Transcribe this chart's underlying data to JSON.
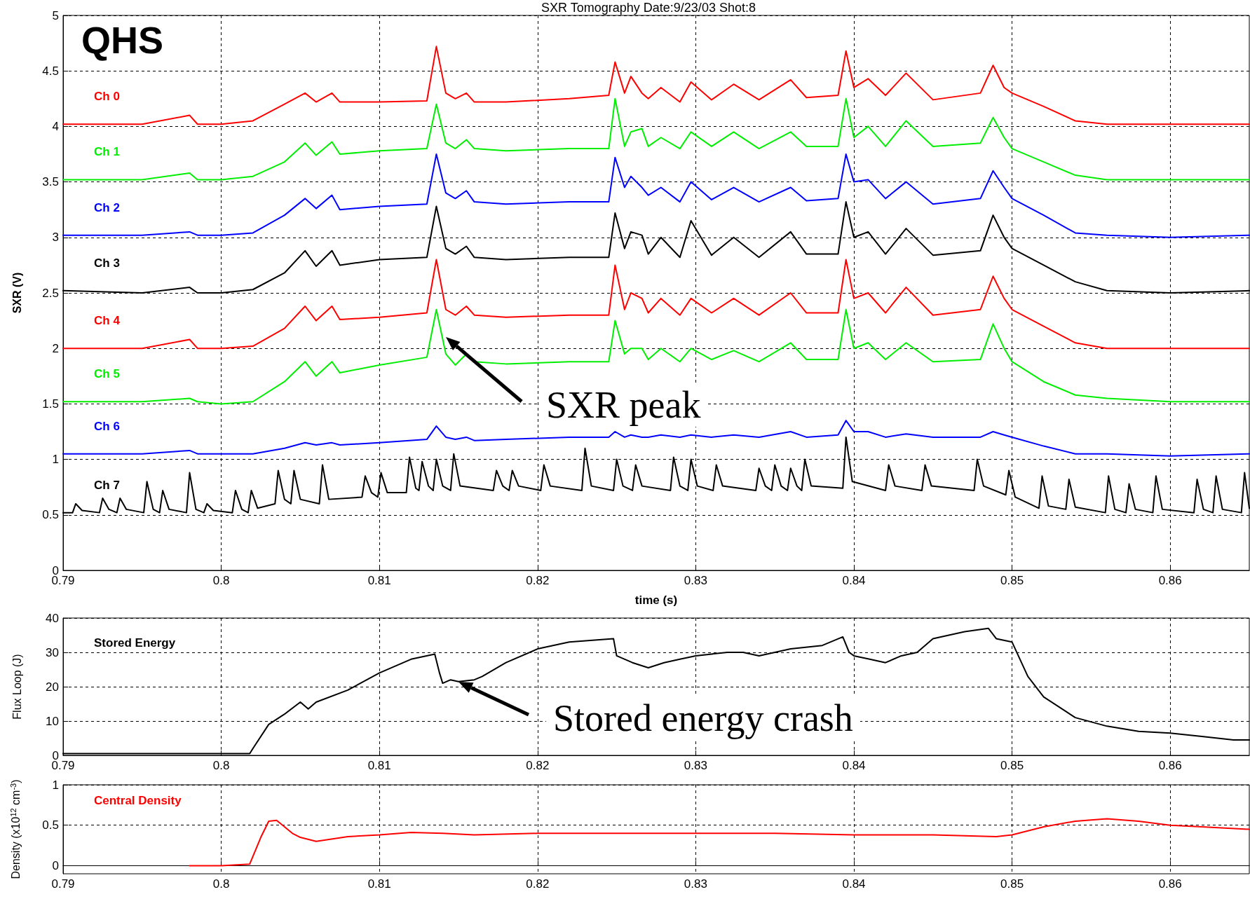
{
  "chart_data": [
    {
      "type": "line",
      "title": "SXR Tomography Date:9/23/03 Shot:8",
      "xlabel": "time (s)",
      "ylabel": "SXR (V)",
      "annotations": [
        "QHS",
        {
          "text": "SXR peak",
          "x": 0.8142,
          "y": 2.1
        }
      ],
      "xlim": [
        0.79,
        0.865
      ],
      "xticks": [
        0.79,
        0.8,
        0.81,
        0.82,
        0.83,
        0.84,
        0.85,
        0.86
      ],
      "ylim": [
        0,
        5
      ],
      "yticks": [
        0,
        0.5,
        1,
        1.5,
        2,
        2.5,
        3,
        3.5,
        4,
        4.5,
        5
      ],
      "grid": true,
      "marker": "none",
      "line_style": "solid",
      "x": [
        0.79,
        0.795,
        0.798,
        0.7985,
        0.8,
        0.802,
        0.804,
        0.8053,
        0.806,
        0.807,
        0.8075,
        0.81,
        0.813,
        0.8136,
        0.8142,
        0.8148,
        0.8155,
        0.816,
        0.818,
        0.822,
        0.8245,
        0.8249,
        0.8255,
        0.8259,
        0.8266,
        0.827,
        0.8278,
        0.829,
        0.8297,
        0.831,
        0.8324,
        0.834,
        0.836,
        0.837,
        0.839,
        0.8395,
        0.84,
        0.8409,
        0.842,
        0.8433,
        0.845,
        0.848,
        0.8488,
        0.8495,
        0.85,
        0.852,
        0.854,
        0.856,
        0.86,
        0.865
      ],
      "series": [
        {
          "name": "Ch 0",
          "color": "#ff0000",
          "values": [
            4.02,
            4.02,
            4.1,
            4.02,
            4.02,
            4.05,
            4.2,
            4.3,
            4.22,
            4.3,
            4.22,
            4.22,
            4.23,
            4.72,
            4.3,
            4.25,
            4.3,
            4.22,
            4.22,
            4.25,
            4.28,
            4.58,
            4.3,
            4.45,
            4.3,
            4.25,
            4.35,
            4.22,
            4.4,
            4.24,
            4.38,
            4.24,
            4.42,
            4.26,
            4.28,
            4.68,
            4.35,
            4.43,
            4.28,
            4.48,
            4.24,
            4.3,
            4.55,
            4.35,
            4.3,
            4.18,
            4.05,
            4.02,
            4.02,
            4.02
          ]
        },
        {
          "name": "Ch 1",
          "color": "#00ee00",
          "values": [
            3.52,
            3.52,
            3.58,
            3.52,
            3.52,
            3.55,
            3.68,
            3.85,
            3.74,
            3.86,
            3.75,
            3.78,
            3.8,
            4.2,
            3.85,
            3.8,
            3.88,
            3.8,
            3.78,
            3.8,
            3.8,
            4.25,
            3.82,
            3.95,
            3.98,
            3.82,
            3.9,
            3.8,
            3.95,
            3.82,
            3.95,
            3.8,
            3.95,
            3.82,
            3.82,
            4.25,
            3.9,
            4.0,
            3.82,
            4.05,
            3.82,
            3.85,
            4.08,
            3.9,
            3.8,
            3.68,
            3.56,
            3.52,
            3.52,
            3.52
          ]
        },
        {
          "name": "Ch 2",
          "color": "#0000ff",
          "values": [
            3.02,
            3.02,
            3.05,
            3.02,
            3.02,
            3.04,
            3.2,
            3.35,
            3.26,
            3.38,
            3.25,
            3.28,
            3.3,
            3.75,
            3.4,
            3.35,
            3.42,
            3.32,
            3.3,
            3.32,
            3.32,
            3.72,
            3.45,
            3.55,
            3.45,
            3.38,
            3.45,
            3.32,
            3.5,
            3.34,
            3.45,
            3.32,
            3.45,
            3.33,
            3.35,
            3.75,
            3.5,
            3.52,
            3.35,
            3.5,
            3.3,
            3.35,
            3.6,
            3.45,
            3.35,
            3.2,
            3.04,
            3.02,
            3.0,
            3.02
          ]
        },
        {
          "name": "Ch 3",
          "color": "#000000",
          "values": [
            2.52,
            2.5,
            2.55,
            2.5,
            2.5,
            2.53,
            2.68,
            2.88,
            2.74,
            2.88,
            2.75,
            2.8,
            2.82,
            3.28,
            2.9,
            2.85,
            2.92,
            2.82,
            2.8,
            2.82,
            2.82,
            3.22,
            2.9,
            3.05,
            3.02,
            2.85,
            3.0,
            2.82,
            3.15,
            2.84,
            3.0,
            2.82,
            3.05,
            2.85,
            2.85,
            3.32,
            3.0,
            3.05,
            2.85,
            3.08,
            2.84,
            2.88,
            3.2,
            3.0,
            2.9,
            2.75,
            2.6,
            2.52,
            2.5,
            2.52
          ]
        },
        {
          "name": "Ch 4",
          "color": "#ff0000",
          "values": [
            2.0,
            2.0,
            2.08,
            2.0,
            2.0,
            2.02,
            2.18,
            2.38,
            2.25,
            2.38,
            2.26,
            2.28,
            2.32,
            2.8,
            2.35,
            2.3,
            2.38,
            2.3,
            2.28,
            2.3,
            2.3,
            2.75,
            2.35,
            2.5,
            2.45,
            2.32,
            2.45,
            2.3,
            2.45,
            2.32,
            2.45,
            2.3,
            2.5,
            2.32,
            2.32,
            2.8,
            2.45,
            2.5,
            2.32,
            2.55,
            2.3,
            2.35,
            2.65,
            2.45,
            2.35,
            2.2,
            2.05,
            2.0,
            2.0,
            2.0
          ]
        },
        {
          "name": "Ch 5",
          "color": "#00ee00",
          "values": [
            1.52,
            1.52,
            1.55,
            1.52,
            1.5,
            1.52,
            1.7,
            1.88,
            1.75,
            1.88,
            1.78,
            1.85,
            1.92,
            2.35,
            1.95,
            1.85,
            1.95,
            1.88,
            1.86,
            1.88,
            1.88,
            2.25,
            1.95,
            2.0,
            2.0,
            1.9,
            2.0,
            1.88,
            2.0,
            1.9,
            1.98,
            1.88,
            2.05,
            1.9,
            1.9,
            2.35,
            2.0,
            2.05,
            1.9,
            2.05,
            1.88,
            1.9,
            2.22,
            2.0,
            1.88,
            1.7,
            1.58,
            1.55,
            1.52,
            1.52
          ]
        },
        {
          "name": "Ch 6",
          "color": "#0000ff",
          "values": [
            1.05,
            1.05,
            1.08,
            1.05,
            1.05,
            1.05,
            1.1,
            1.15,
            1.13,
            1.15,
            1.13,
            1.15,
            1.18,
            1.3,
            1.2,
            1.18,
            1.2,
            1.17,
            1.18,
            1.2,
            1.2,
            1.25,
            1.2,
            1.22,
            1.2,
            1.2,
            1.22,
            1.2,
            1.22,
            1.2,
            1.22,
            1.2,
            1.25,
            1.2,
            1.22,
            1.35,
            1.25,
            1.25,
            1.2,
            1.23,
            1.2,
            1.2,
            1.25,
            1.22,
            1.2,
            1.12,
            1.05,
            1.05,
            1.03,
            1.05
          ]
        },
        {
          "name": "Ch 7",
          "color": "#000000",
          "x": [
            0.79,
            0.7906,
            0.7908,
            0.7912,
            0.7923,
            0.7925,
            0.7929,
            0.7934,
            0.7936,
            0.794,
            0.7951,
            0.7953,
            0.7957,
            0.7961,
            0.7963,
            0.7967,
            0.7978,
            0.798,
            0.7984,
            0.7989,
            0.7991,
            0.7995,
            0.8007,
            0.8009,
            0.8013,
            0.8017,
            0.8019,
            0.8023,
            0.8034,
            0.8036,
            0.804,
            0.8044,
            0.8046,
            0.805,
            0.8062,
            0.8064,
            0.8068,
            0.8089,
            0.8091,
            0.8095,
            0.8099,
            0.8101,
            0.8105,
            0.8117,
            0.8119,
            0.8123,
            0.8125,
            0.8127,
            0.8131,
            0.8134,
            0.8136,
            0.814,
            0.8145,
            0.8147,
            0.8151,
            0.8172,
            0.8174,
            0.8178,
            0.8182,
            0.8184,
            0.8188,
            0.8202,
            0.8204,
            0.8208,
            0.8228,
            0.823,
            0.8234,
            0.8248,
            0.825,
            0.8254,
            0.826,
            0.8262,
            0.8266,
            0.8284,
            0.8286,
            0.829,
            0.8295,
            0.8297,
            0.8301,
            0.8311,
            0.8313,
            0.8317,
            0.8338,
            0.834,
            0.8344,
            0.8348,
            0.835,
            0.8354,
            0.8358,
            0.836,
            0.8364,
            0.8367,
            0.8369,
            0.8373,
            0.8393,
            0.8395,
            0.8399,
            0.842,
            0.8422,
            0.8426,
            0.8443,
            0.8445,
            0.8449,
            0.8476,
            0.8478,
            0.8482,
            0.8496,
            0.8498,
            0.8502,
            0.8517,
            0.8519,
            0.8523,
            0.8534,
            0.8536,
            0.854,
            0.8559,
            0.8561,
            0.8565,
            0.8572,
            0.8574,
            0.8578,
            0.8589,
            0.8591,
            0.8595,
            0.8615,
            0.8617,
            0.8621,
            0.8627,
            0.8629,
            0.8633,
            0.8645,
            0.8647,
            0.865
          ],
          "values": [
            0.52,
            0.52,
            0.6,
            0.54,
            0.52,
            0.65,
            0.55,
            0.52,
            0.65,
            0.55,
            0.52,
            0.8,
            0.55,
            0.52,
            0.72,
            0.55,
            0.52,
            0.88,
            0.55,
            0.52,
            0.6,
            0.54,
            0.52,
            0.72,
            0.55,
            0.52,
            0.72,
            0.56,
            0.6,
            0.9,
            0.64,
            0.6,
            0.9,
            0.64,
            0.6,
            0.95,
            0.64,
            0.66,
            0.85,
            0.7,
            0.66,
            0.88,
            0.7,
            0.7,
            1.02,
            0.74,
            0.72,
            0.98,
            0.76,
            0.72,
            1.0,
            0.76,
            0.72,
            1.05,
            0.76,
            0.72,
            0.9,
            0.76,
            0.72,
            0.9,
            0.76,
            0.72,
            0.95,
            0.76,
            0.72,
            1.1,
            0.76,
            0.72,
            1.0,
            0.76,
            0.72,
            0.95,
            0.76,
            0.72,
            1.02,
            0.76,
            0.72,
            1.0,
            0.76,
            0.72,
            0.95,
            0.76,
            0.72,
            0.92,
            0.76,
            0.72,
            0.95,
            0.76,
            0.72,
            0.92,
            0.76,
            0.72,
            1.0,
            0.76,
            0.74,
            1.2,
            0.8,
            0.72,
            0.95,
            0.76,
            0.72,
            0.95,
            0.76,
            0.72,
            1.0,
            0.76,
            0.68,
            0.9,
            0.66,
            0.56,
            0.85,
            0.58,
            0.55,
            0.82,
            0.57,
            0.52,
            0.85,
            0.55,
            0.52,
            0.78,
            0.55,
            0.52,
            0.85,
            0.55,
            0.52,
            0.82,
            0.55,
            0.52,
            0.85,
            0.55,
            0.52,
            0.88,
            0.56
          ]
        }
      ]
    },
    {
      "type": "line",
      "ylabel": "Flux Loop (J)",
      "annotations": [
        {
          "text": "Stored energy crash",
          "x": 0.815,
          "y": 21.5
        }
      ],
      "xlim": [
        0.79,
        0.865
      ],
      "xticks": [
        0.79,
        0.8,
        0.81,
        0.82,
        0.83,
        0.84,
        0.85,
        0.86
      ],
      "ylim": [
        0,
        40
      ],
      "yticks": [
        0,
        10,
        20,
        30,
        40
      ],
      "grid": true,
      "marker": "none",
      "line_style": "solid",
      "x": [
        0.79,
        0.8,
        0.8018,
        0.802,
        0.803,
        0.804,
        0.805,
        0.8055,
        0.806,
        0.808,
        0.81,
        0.812,
        0.8135,
        0.8138,
        0.814,
        0.8145,
        0.815,
        0.816,
        0.8165,
        0.818,
        0.82,
        0.822,
        0.8248,
        0.825,
        0.826,
        0.827,
        0.828,
        0.829,
        0.83,
        0.831,
        0.832,
        0.833,
        0.834,
        0.836,
        0.838,
        0.8393,
        0.8397,
        0.84,
        0.841,
        0.842,
        0.843,
        0.844,
        0.845,
        0.847,
        0.8485,
        0.849,
        0.85,
        0.851,
        0.852,
        0.854,
        0.856,
        0.858,
        0.86,
        0.862,
        0.864,
        0.865
      ],
      "series": [
        {
          "name": "Stored Energy",
          "color": "#000000",
          "values": [
            0.5,
            0.5,
            0.5,
            2,
            9,
            12,
            15.5,
            13.5,
            15.5,
            19,
            24,
            28,
            29.5,
            24,
            21,
            22,
            21.5,
            22,
            23,
            27,
            31,
            33,
            34,
            29,
            27,
            25.5,
            27,
            28,
            29,
            29.5,
            30,
            30,
            29,
            31,
            32,
            34.5,
            30,
            29,
            28,
            27,
            29,
            30,
            34,
            36,
            37,
            34,
            33,
            23,
            17,
            11,
            8.5,
            7,
            6.5,
            5.5,
            4.5,
            4.5
          ]
        }
      ]
    },
    {
      "type": "line",
      "ylabel": "Density (x10$^{12}$ cm$^{-3}$)",
      "xlim": [
        0.79,
        0.865
      ],
      "xticks": [
        0.79,
        0.8,
        0.81,
        0.82,
        0.83,
        0.84,
        0.85,
        0.86
      ],
      "ylim": [
        -0.1,
        1
      ],
      "yticks": [
        0,
        0.5,
        1
      ],
      "grid": true,
      "marker": "none",
      "line_style": "solid",
      "x": [
        0.798,
        0.8,
        0.8018,
        0.8025,
        0.803,
        0.8035,
        0.8045,
        0.805,
        0.806,
        0.808,
        0.81,
        0.812,
        0.814,
        0.816,
        0.82,
        0.825,
        0.83,
        0.835,
        0.84,
        0.845,
        0.849,
        0.85,
        0.852,
        0.854,
        0.856,
        0.858,
        0.86,
        0.862,
        0.865
      ],
      "series": [
        {
          "name": "Central Density",
          "color": "#ff0000",
          "values": [
            0,
            0,
            0.02,
            0.35,
            0.55,
            0.56,
            0.4,
            0.35,
            0.3,
            0.36,
            0.38,
            0.41,
            0.4,
            0.38,
            0.4,
            0.4,
            0.4,
            0.4,
            0.38,
            0.38,
            0.36,
            0.38,
            0.48,
            0.55,
            0.58,
            0.55,
            0.5,
            0.48,
            0.45
          ]
        }
      ]
    }
  ]
}
